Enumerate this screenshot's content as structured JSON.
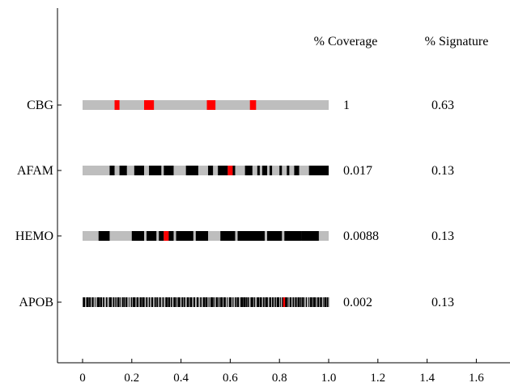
{
  "chart_data": {
    "type": "bar",
    "title": "",
    "xlabel": "",
    "ylabel": "",
    "xlim": [
      -0.1,
      1.72
    ],
    "x_ticks": [
      0,
      0.2,
      0.4,
      0.6,
      0.8,
      1.0,
      1.2,
      1.4,
      1.6
    ],
    "x_tick_labels": [
      "0",
      "0.2",
      "0.4",
      "0.6",
      "0.8",
      "1.0",
      "1.2",
      "1.4",
      "1.6"
    ],
    "grid": false,
    "column_headers": [
      "% Coverage",
      "% Signature"
    ],
    "track_background_color": "#bebebe",
    "segment_colors": {
      "black": "#000000",
      "red": "#ff0000"
    },
    "rows": [
      {
        "label": "CBG",
        "coverage": "1",
        "signature": "0.63",
        "start": 0,
        "end": 1,
        "segments": [
          {
            "x0": 0.13,
            "x1": 0.15,
            "color": "red"
          },
          {
            "x0": 0.25,
            "x1": 0.29,
            "color": "red"
          },
          {
            "x0": 0.505,
            "x1": 0.54,
            "color": "red"
          },
          {
            "x0": 0.68,
            "x1": 0.705,
            "color": "red"
          }
        ]
      },
      {
        "label": "AFAM",
        "coverage": "0.017",
        "signature": "0.13",
        "start": 0,
        "end": 1,
        "segments": [
          {
            "x0": 0.11,
            "x1": 0.13,
            "color": "black"
          },
          {
            "x0": 0.15,
            "x1": 0.18,
            "color": "black"
          },
          {
            "x0": 0.21,
            "x1": 0.25,
            "color": "black"
          },
          {
            "x0": 0.27,
            "x1": 0.32,
            "color": "black"
          },
          {
            "x0": 0.33,
            "x1": 0.37,
            "color": "black"
          },
          {
            "x0": 0.42,
            "x1": 0.47,
            "color": "black"
          },
          {
            "x0": 0.51,
            "x1": 0.53,
            "color": "black"
          },
          {
            "x0": 0.55,
            "x1": 0.59,
            "color": "black"
          },
          {
            "x0": 0.59,
            "x1": 0.61,
            "color": "red"
          },
          {
            "x0": 0.61,
            "x1": 0.62,
            "color": "black"
          },
          {
            "x0": 0.66,
            "x1": 0.69,
            "color": "black"
          },
          {
            "x0": 0.71,
            "x1": 0.72,
            "color": "black"
          },
          {
            "x0": 0.73,
            "x1": 0.75,
            "color": "black"
          },
          {
            "x0": 0.76,
            "x1": 0.77,
            "color": "black"
          },
          {
            "x0": 0.8,
            "x1": 0.81,
            "color": "black"
          },
          {
            "x0": 0.83,
            "x1": 0.84,
            "color": "black"
          },
          {
            "x0": 0.86,
            "x1": 0.88,
            "color": "black"
          },
          {
            "x0": 0.92,
            "x1": 1.0,
            "color": "black"
          }
        ]
      },
      {
        "label": "HEMO",
        "coverage": "0.0088",
        "signature": "0.13",
        "start": 0,
        "end": 1,
        "segments": [
          {
            "x0": 0.065,
            "x1": 0.11,
            "color": "black"
          },
          {
            "x0": 0.2,
            "x1": 0.25,
            "color": "black"
          },
          {
            "x0": 0.26,
            "x1": 0.3,
            "color": "black"
          },
          {
            "x0": 0.31,
            "x1": 0.33,
            "color": "black"
          },
          {
            "x0": 0.33,
            "x1": 0.35,
            "color": "red"
          },
          {
            "x0": 0.35,
            "x1": 0.37,
            "color": "black"
          },
          {
            "x0": 0.38,
            "x1": 0.45,
            "color": "black"
          },
          {
            "x0": 0.46,
            "x1": 0.51,
            "color": "black"
          },
          {
            "x0": 0.56,
            "x1": 0.62,
            "color": "black"
          },
          {
            "x0": 0.63,
            "x1": 0.74,
            "color": "black"
          },
          {
            "x0": 0.75,
            "x1": 0.81,
            "color": "black"
          },
          {
            "x0": 0.82,
            "x1": 0.89,
            "color": "black"
          },
          {
            "x0": 0.89,
            "x1": 0.96,
            "color": "black"
          }
        ]
      },
      {
        "label": "APOB",
        "coverage": "0.002",
        "signature": "0.13",
        "start": 0,
        "end": 1,
        "stripe_pattern": "dense",
        "segments": [
          {
            "x0": 0.815,
            "x1": 0.823,
            "color": "red"
          }
        ]
      }
    ]
  }
}
